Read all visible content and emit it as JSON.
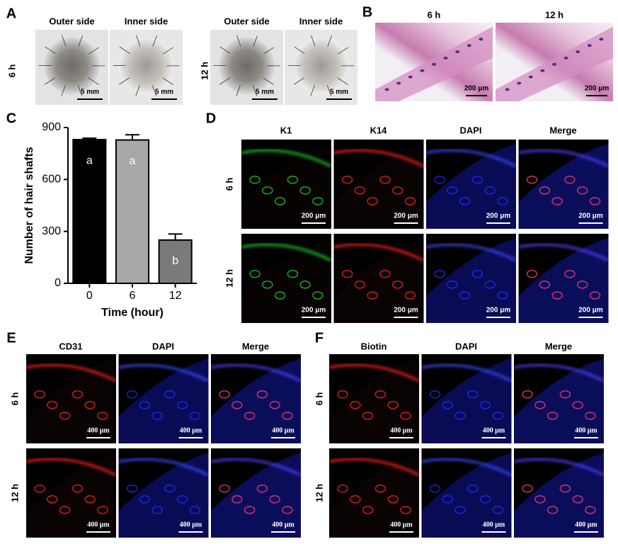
{
  "panels": {
    "A": {
      "label": "A",
      "groups": [
        {
          "row": "6 h",
          "columns": [
            "Outer side",
            "Inner side"
          ]
        },
        {
          "row": "12 h",
          "columns": [
            "Outer side",
            "Inner side"
          ]
        }
      ],
      "scale_bar": "5 mm"
    },
    "B": {
      "label": "B",
      "columns": [
        "6 h",
        "12 h"
      ],
      "scale_bar": "200 μm"
    },
    "D": {
      "label": "D",
      "columns": [
        "K1",
        "K14",
        "DAPI",
        "Merge"
      ],
      "rows": [
        "6 h",
        "12 h"
      ],
      "scale_bar": "200 μm"
    },
    "E": {
      "label": "E",
      "columns": [
        "CD31",
        "DAPI",
        "Merge"
      ],
      "rows": [
        "6 h",
        "12 h"
      ],
      "scale_bar": "400 μm"
    },
    "F": {
      "label": "F",
      "columns": [
        "Biotin",
        "DAPI",
        "Merge"
      ],
      "rows": [
        "6 h",
        "12 h"
      ],
      "scale_bar": "400 μm"
    }
  },
  "chart_data": {
    "type": "bar",
    "panel_label": "C",
    "categories": [
      "0",
      "6",
      "12"
    ],
    "values": [
      830,
      828,
      250
    ],
    "errors": [
      8,
      30,
      35
    ],
    "annotations": [
      "a",
      "a",
      "b"
    ],
    "colors": [
      "#000000",
      "#a8a8a8",
      "#7a7a7a"
    ],
    "ylim": [
      0,
      900
    ],
    "yticks": [
      0,
      300,
      600,
      900
    ],
    "x_label": "Time (hour)",
    "y_label": "Number of hair shafts"
  }
}
